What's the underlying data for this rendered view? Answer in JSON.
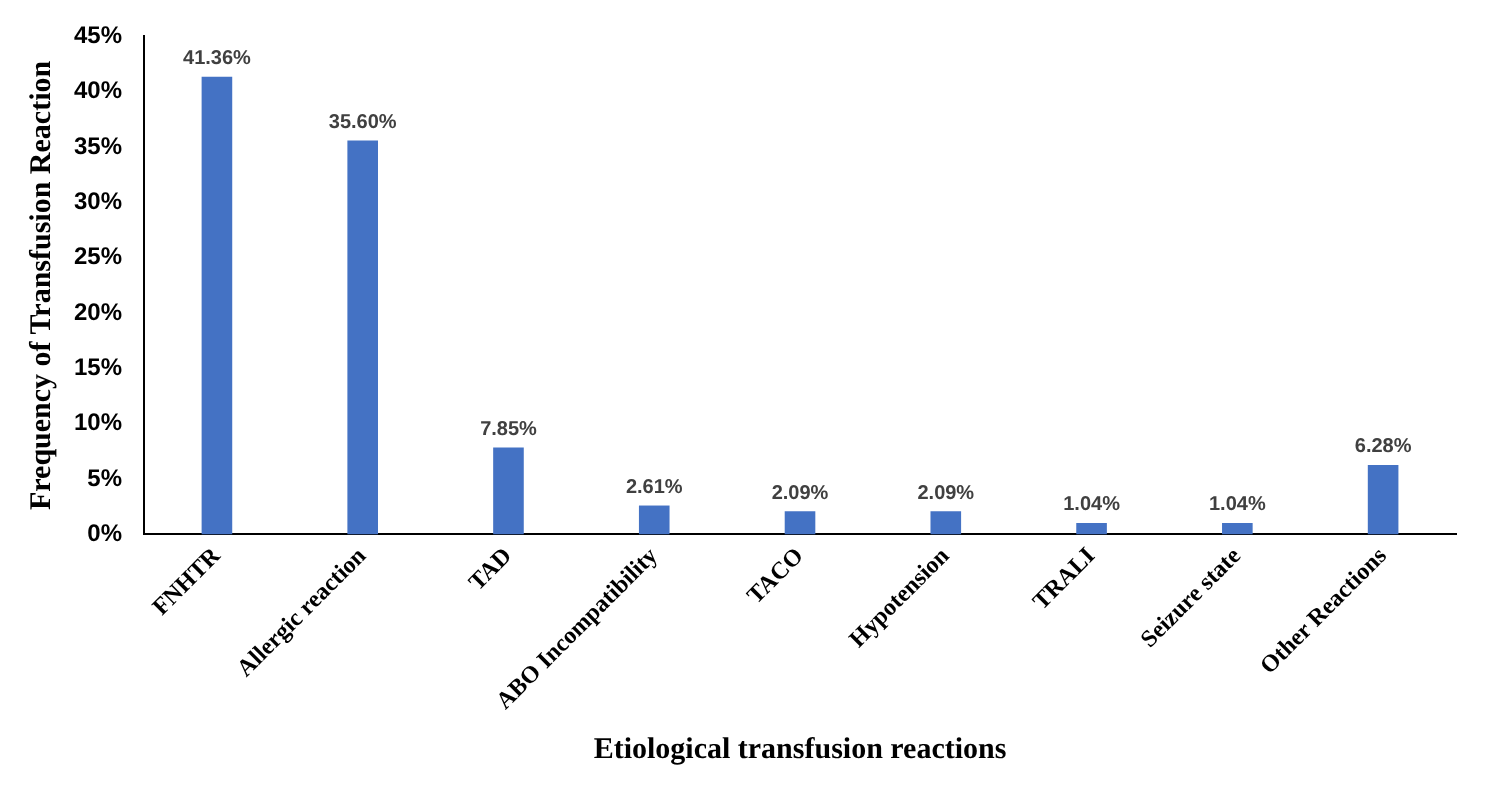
{
  "chart_data": {
    "type": "bar",
    "xlabel": "Etiological transfusion reactions",
    "ylabel": "Frequency of Transfusion Reaction",
    "categories": [
      "FNHTR",
      "Allergic reaction",
      "TAD",
      "ABO Incompatibility",
      "TACO",
      "Hypotension",
      "TRALI",
      "Seizure state",
      "Other Reactions"
    ],
    "values": [
      41.36,
      35.6,
      7.85,
      2.61,
      2.09,
      2.09,
      1.04,
      1.04,
      6.28
    ],
    "value_labels": [
      "41.36%",
      "35.60%",
      "7.85%",
      "2.61%",
      "2.09%",
      "2.09%",
      "1.04%",
      "1.04%",
      "6.28%"
    ],
    "color": "#4472c4",
    "ylim": [
      0,
      45
    ],
    "yticks": [
      {
        "value": 0,
        "label": "0%"
      },
      {
        "value": 5,
        "label": "5%"
      },
      {
        "value": 10,
        "label": "10%"
      },
      {
        "value": 15,
        "label": "15%"
      },
      {
        "value": 20,
        "label": "20%"
      },
      {
        "value": 25,
        "label": "25%"
      },
      {
        "value": 30,
        "label": "30%"
      },
      {
        "value": 35,
        "label": "35%"
      },
      {
        "value": 40,
        "label": "40%"
      },
      {
        "value": 45,
        "label": "45%"
      }
    ],
    "grid": false,
    "legend": false
  }
}
